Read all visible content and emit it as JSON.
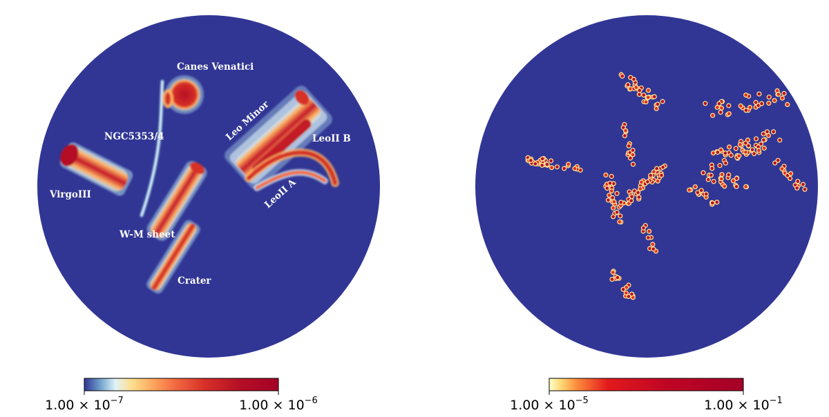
{
  "chart_data": [
    {
      "type": "heatmap",
      "projection": "orthographic sky map",
      "color_scale": "log",
      "colormap": "blue-white-yellow-red",
      "background_color": "#313695",
      "colorbar": {
        "min_label": "1.00 × 10",
        "min_exp": "−7",
        "max_label": "1.00 × 10",
        "max_exp": "−6",
        "range": [
          1e-07,
          1e-06
        ]
      },
      "annotations": [
        "Canes Venatici",
        "NGC5353/4",
        "Leo Minor",
        "LeoII B",
        "VirgoIII",
        "LeoII A",
        "W-M sheet",
        "Crater"
      ]
    },
    {
      "type": "heatmap",
      "projection": "orthographic sky map",
      "color_scale": "log",
      "colormap": "yellow-red",
      "background_color": "#313695",
      "colorbar": {
        "min_label": "1.00 × 10",
        "min_exp": "−5",
        "max_label": "1.00 × 10",
        "max_exp": "−1",
        "range": [
          1e-05,
          0.1
        ]
      }
    }
  ]
}
